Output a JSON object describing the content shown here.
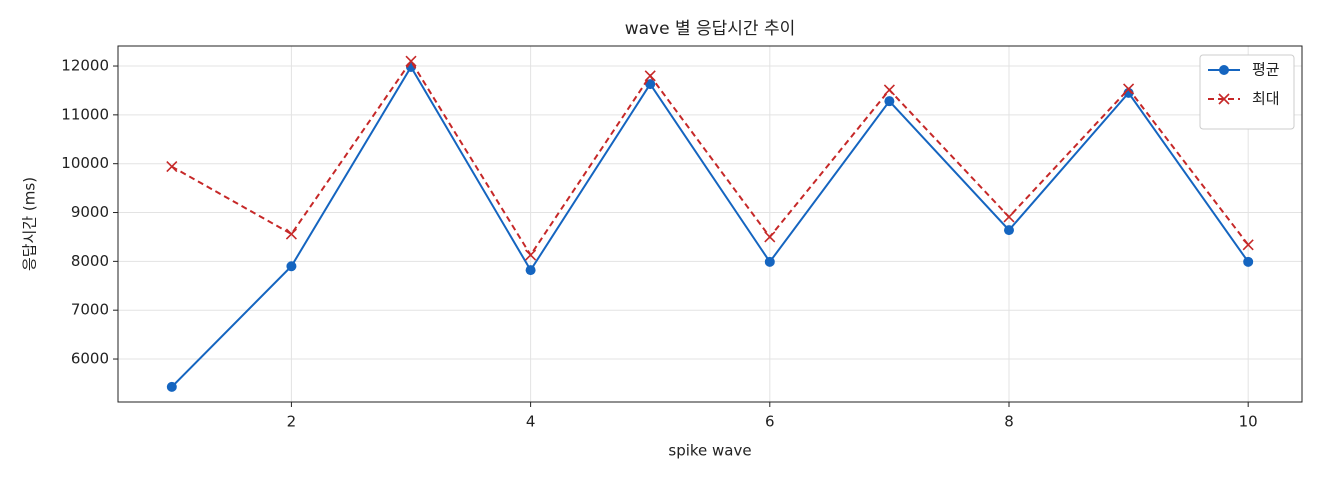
{
  "chart_data": {
    "type": "line",
    "title": "wave 별 응답시간 추이",
    "xlabel": "spike wave",
    "ylabel": "응답시간 (ms)",
    "x": [
      1,
      2,
      3,
      4,
      5,
      6,
      7,
      8,
      9,
      10
    ],
    "series": [
      {
        "name": "평균",
        "color": "#1565c0",
        "marker": "o",
        "dashed": false,
        "values": [
          5430,
          7900,
          11980,
          7820,
          11630,
          7990,
          11280,
          8640,
          11450,
          7990
        ]
      },
      {
        "name": "최대",
        "color": "#c62828",
        "marker": "x",
        "dashed": true,
        "values": [
          9940,
          8560,
          12100,
          8130,
          11800,
          8500,
          11510,
          8910,
          11530,
          8340
        ]
      }
    ],
    "xlim": [
      0.55,
      10.45
    ],
    "xticks": [
      2,
      4,
      6,
      8,
      10
    ],
    "ylim": [
      5120,
      12410
    ],
    "yticks": [
      6000,
      7000,
      8000,
      9000,
      10000,
      11000,
      12000
    ],
    "grid": true,
    "legend": "upper right"
  }
}
